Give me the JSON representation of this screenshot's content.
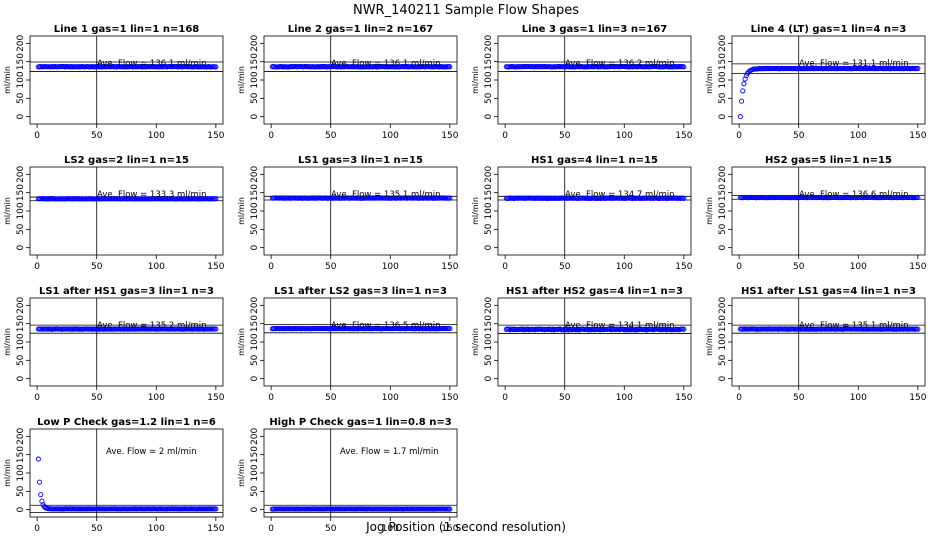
{
  "figure": {
    "title": "NWR_140211  Sample Flow Shapes",
    "xlabel": "Jog Position (1 second resolution)"
  },
  "chart_data": [
    {
      "type": "scatter",
      "title": "Line 1 gas=1 lin=1 n=168",
      "ylabel": "ml/min",
      "annotation": "Ave. Flow =  136.1  ml/min",
      "xlim": [
        0,
        150
      ],
      "ylim": [
        -20,
        220
      ],
      "xticks": [
        0,
        50,
        100,
        150
      ],
      "yticks": [
        0,
        50,
        100,
        150,
        200
      ],
      "vline_x": 50,
      "hlines": [
        123,
        149
      ],
      "series": [
        {
          "shape": "flat",
          "start_x": 1,
          "end_x": 150,
          "level": 136.1,
          "noise": 0.6
        }
      ]
    },
    {
      "type": "scatter",
      "title": "Line 2 gas=1 lin=2 n=167",
      "ylabel": "ml/min",
      "annotation": "Ave. Flow =  136.1  ml/min",
      "xlim": [
        0,
        150
      ],
      "ylim": [
        -20,
        220
      ],
      "xticks": [
        0,
        50,
        100,
        150
      ],
      "yticks": [
        0,
        50,
        100,
        150,
        200
      ],
      "vline_x": 50,
      "hlines": [
        123,
        149
      ],
      "series": [
        {
          "shape": "flat",
          "start_x": 1,
          "end_x": 150,
          "level": 136.1,
          "noise": 0.6
        }
      ]
    },
    {
      "type": "scatter",
      "title": "Line 3 gas=1 lin=3 n=167",
      "ylabel": "ml/min",
      "annotation": "Ave. Flow =  136.2  ml/min",
      "xlim": [
        0,
        150
      ],
      "ylim": [
        -20,
        220
      ],
      "xticks": [
        0,
        50,
        100,
        150
      ],
      "yticks": [
        0,
        50,
        100,
        150,
        200
      ],
      "vline_x": 50,
      "hlines": [
        123,
        149
      ],
      "series": [
        {
          "shape": "flat",
          "start_x": 1,
          "end_x": 150,
          "level": 136.2,
          "noise": 0.6
        }
      ]
    },
    {
      "type": "scatter",
      "title": "Line 4 (LT) gas=1 lin=4 n=3",
      "ylabel": "ml/min",
      "annotation": "Ave. Flow =  131.1  ml/min",
      "xlim": [
        0,
        150
      ],
      "ylim": [
        -20,
        220
      ],
      "xticks": [
        0,
        50,
        100,
        150
      ],
      "yticks": [
        0,
        50,
        100,
        150,
        200
      ],
      "vline_x": 50,
      "hlines": [
        118,
        144
      ],
      "series": [
        {
          "shape": "rise",
          "start_x": 1,
          "end_x": 150,
          "level": 131.1,
          "first_value": 0,
          "tau": 2.6,
          "noise": 0.4
        }
      ]
    },
    {
      "type": "scatter",
      "title": "LS2 gas=2 lin=1 n=15",
      "ylabel": "ml/min",
      "annotation": "Ave. Flow =  133.3  ml/min",
      "xlim": [
        0,
        150
      ],
      "ylim": [
        -20,
        220
      ],
      "xticks": [
        0,
        50,
        100,
        150
      ],
      "yticks": [
        0,
        50,
        100,
        150,
        200
      ],
      "vline_x": 50,
      "hlines": [
        128,
        138
      ],
      "series": [
        {
          "shape": "flat",
          "start_x": 1,
          "end_x": 150,
          "level": 133.3,
          "noise": 0.5
        }
      ]
    },
    {
      "type": "scatter",
      "title": "LS1 gas=3 lin=1 n=15",
      "ylabel": "ml/min",
      "annotation": "Ave. Flow =  135.1  ml/min",
      "xlim": [
        0,
        150
      ],
      "ylim": [
        -20,
        220
      ],
      "xticks": [
        0,
        50,
        100,
        150
      ],
      "yticks": [
        0,
        50,
        100,
        150,
        200
      ],
      "vline_x": 50,
      "hlines": [
        130,
        140
      ],
      "series": [
        {
          "shape": "flat",
          "start_x": 1,
          "end_x": 150,
          "level": 135.1,
          "noise": 0.5
        }
      ]
    },
    {
      "type": "scatter",
      "title": "HS1 gas=4 lin=1 n=15",
      "ylabel": "ml/min",
      "annotation": "Ave. Flow =  134.7  ml/min",
      "xlim": [
        0,
        150
      ],
      "ylim": [
        -20,
        220
      ],
      "xticks": [
        0,
        50,
        100,
        150
      ],
      "yticks": [
        0,
        50,
        100,
        150,
        200
      ],
      "vline_x": 50,
      "hlines": [
        130,
        140
      ],
      "series": [
        {
          "shape": "flat",
          "start_x": 1,
          "end_x": 150,
          "level": 134.7,
          "noise": 0.5
        }
      ]
    },
    {
      "type": "scatter",
      "title": "HS2 gas=5 lin=1 n=15",
      "ylabel": "ml/min",
      "annotation": "Ave. Flow =  136.6  ml/min",
      "xlim": [
        0,
        150
      ],
      "ylim": [
        -20,
        220
      ],
      "xticks": [
        0,
        50,
        100,
        150
      ],
      "yticks": [
        0,
        50,
        100,
        150,
        200
      ],
      "vline_x": 50,
      "hlines": [
        132,
        142
      ],
      "series": [
        {
          "shape": "flat",
          "start_x": 1,
          "end_x": 150,
          "level": 136.6,
          "noise": 0.5
        }
      ]
    },
    {
      "type": "scatter",
      "title": "LS1 after HS1 gas=3 lin=1 n=3",
      "ylabel": "ml/min",
      "annotation": "Ave. Flow =  135.2  ml/min",
      "xlim": [
        0,
        150
      ],
      "ylim": [
        -20,
        220
      ],
      "xticks": [
        0,
        50,
        100,
        150
      ],
      "yticks": [
        0,
        50,
        100,
        150,
        200
      ],
      "vline_x": 50,
      "hlines": [
        124,
        146
      ],
      "series": [
        {
          "shape": "flat",
          "start_x": 1,
          "end_x": 150,
          "level": 135.2,
          "noise": 0.5
        }
      ]
    },
    {
      "type": "scatter",
      "title": "LS1 after LS2 gas=3 lin=1 n=3",
      "ylabel": "ml/min",
      "annotation": "Ave. Flow =  136.5  ml/min",
      "xlim": [
        0,
        150
      ],
      "ylim": [
        -20,
        220
      ],
      "xticks": [
        0,
        50,
        100,
        150
      ],
      "yticks": [
        0,
        50,
        100,
        150,
        200
      ],
      "vline_x": 50,
      "hlines": [
        125,
        148
      ],
      "series": [
        {
          "shape": "flat",
          "start_x": 1,
          "end_x": 150,
          "level": 136.5,
          "noise": 0.5
        }
      ]
    },
    {
      "type": "scatter",
      "title": "HS1 after HS2 gas=4 lin=1 n=3",
      "ylabel": "ml/min",
      "annotation": "Ave. Flow =  134.1  ml/min",
      "xlim": [
        0,
        150
      ],
      "ylim": [
        -20,
        220
      ],
      "xticks": [
        0,
        50,
        100,
        150
      ],
      "yticks": [
        0,
        50,
        100,
        150,
        200
      ],
      "vline_x": 50,
      "hlines": [
        123,
        146
      ],
      "series": [
        {
          "shape": "flat",
          "start_x": 1,
          "end_x": 150,
          "level": 134.1,
          "noise": 1.2
        }
      ]
    },
    {
      "type": "scatter",
      "title": "HS1 after LS1 gas=4 lin=1 n=3",
      "ylabel": "ml/min",
      "annotation": "Ave. Flow =  135.1  ml/min",
      "xlim": [
        0,
        150
      ],
      "ylim": [
        -20,
        220
      ],
      "xticks": [
        0,
        50,
        100,
        150
      ],
      "yticks": [
        0,
        50,
        100,
        150,
        200
      ],
      "vline_x": 50,
      "hlines": [
        124,
        146
      ],
      "series": [
        {
          "shape": "flat",
          "start_x": 1,
          "end_x": 150,
          "level": 135.1,
          "noise": 0.5
        }
      ]
    },
    {
      "type": "scatter",
      "title": "Low P Check gas=1.2 lin=1 n=6",
      "ylabel": "ml/min",
      "annotation": "Ave. Flow =  2  ml/min",
      "xlim": [
        0,
        150
      ],
      "ylim": [
        -20,
        220
      ],
      "xticks": [
        0,
        50,
        100,
        150
      ],
      "yticks": [
        0,
        50,
        100,
        150,
        200
      ],
      "vline_x": 50,
      "hlines": [
        -8,
        12
      ],
      "series": [
        {
          "shape": "decay",
          "start_x": 1,
          "end_x": 150,
          "level": 2,
          "first_value": 138,
          "tau": 1.6,
          "noise": 0.3
        }
      ]
    },
    {
      "type": "scatter",
      "title": "High P Check gas=1 lin=0.8 n=3",
      "ylabel": "ml/min",
      "annotation": "Ave. Flow =  1.7  ml/min",
      "xlim": [
        0,
        150
      ],
      "ylim": [
        -20,
        220
      ],
      "xticks": [
        0,
        50,
        100,
        150
      ],
      "yticks": [
        0,
        50,
        100,
        150,
        200
      ],
      "vline_x": 50,
      "hlines": [
        -8,
        12
      ],
      "series": [
        {
          "shape": "flat",
          "start_x": 1,
          "end_x": 150,
          "level": 1.7,
          "noise": 0.3
        }
      ]
    }
  ]
}
